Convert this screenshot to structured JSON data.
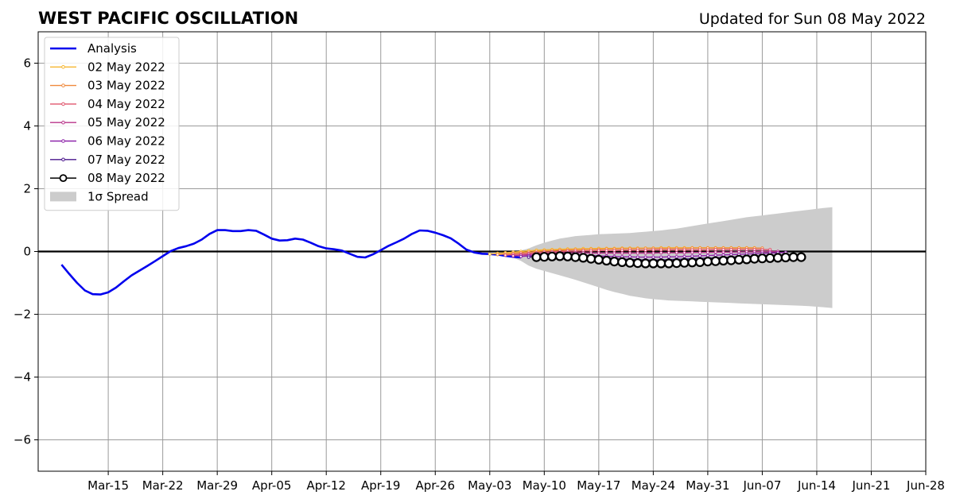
{
  "chart_data": {
    "type": "line",
    "title": "WEST PACIFIC OSCILLATION",
    "subtitle": "Updated for Sun 08 May 2022",
    "xlabel": "",
    "ylabel": "",
    "xlim": [
      "2022-03-06",
      "2022-06-28"
    ],
    "ylim": [
      -7,
      7
    ],
    "grid": true,
    "legend_position": "top-left",
    "x_ticks": [
      {
        "date": "2022-03-15",
        "label": "Mar-15"
      },
      {
        "date": "2022-03-22",
        "label": "Mar-22"
      },
      {
        "date": "2022-03-29",
        "label": "Mar-29"
      },
      {
        "date": "2022-04-05",
        "label": "Apr-05"
      },
      {
        "date": "2022-04-12",
        "label": "Apr-12"
      },
      {
        "date": "2022-04-19",
        "label": "Apr-19"
      },
      {
        "date": "2022-04-26",
        "label": "Apr-26"
      },
      {
        "date": "2022-05-03",
        "label": "May-03"
      },
      {
        "date": "2022-05-10",
        "label": "May-10"
      },
      {
        "date": "2022-05-17",
        "label": "May-17"
      },
      {
        "date": "2022-05-24",
        "label": "May-24"
      },
      {
        "date": "2022-05-31",
        "label": "May-31"
      },
      {
        "date": "2022-06-07",
        "label": "Jun-07"
      },
      {
        "date": "2022-06-14",
        "label": "Jun-14"
      },
      {
        "date": "2022-06-21",
        "label": "Jun-21"
      },
      {
        "date": "2022-06-28",
        "label": "Jun-28"
      }
    ],
    "y_ticks": [
      {
        "value": 6,
        "label": "6"
      },
      {
        "value": 4,
        "label": "4"
      },
      {
        "value": 2,
        "label": "2"
      },
      {
        "value": 0,
        "label": "0"
      },
      {
        "value": -2,
        "label": "−2"
      },
      {
        "value": -4,
        "label": "−4"
      },
      {
        "value": -6,
        "label": "−6"
      }
    ],
    "series": [
      {
        "name": "Analysis",
        "color": "#0000ee",
        "style": "analysis",
        "points": [
          [
            "2022-03-09",
            -0.42
          ],
          [
            "2022-03-10",
            -0.72
          ],
          [
            "2022-03-11",
            -1.0
          ],
          [
            "2022-03-12",
            -1.24
          ],
          [
            "2022-03-13",
            -1.36
          ],
          [
            "2022-03-14",
            -1.37
          ],
          [
            "2022-03-15",
            -1.3
          ],
          [
            "2022-03-16",
            -1.15
          ],
          [
            "2022-03-17",
            -0.95
          ],
          [
            "2022-03-18",
            -0.76
          ],
          [
            "2022-03-19",
            -0.61
          ],
          [
            "2022-03-20",
            -0.46
          ],
          [
            "2022-03-21",
            -0.31
          ],
          [
            "2022-03-22",
            -0.15
          ],
          [
            "2022-03-23",
            0.01
          ],
          [
            "2022-03-24",
            0.11
          ],
          [
            "2022-03-25",
            0.17
          ],
          [
            "2022-03-26",
            0.25
          ],
          [
            "2022-03-27",
            0.38
          ],
          [
            "2022-03-28",
            0.56
          ],
          [
            "2022-03-29",
            0.68
          ],
          [
            "2022-03-30",
            0.68
          ],
          [
            "2022-03-31",
            0.65
          ],
          [
            "2022-04-01",
            0.65
          ],
          [
            "2022-04-02",
            0.68
          ],
          [
            "2022-04-03",
            0.66
          ],
          [
            "2022-04-04",
            0.54
          ],
          [
            "2022-04-05",
            0.41
          ],
          [
            "2022-04-06",
            0.35
          ],
          [
            "2022-04-07",
            0.36
          ],
          [
            "2022-04-08",
            0.41
          ],
          [
            "2022-04-09",
            0.38
          ],
          [
            "2022-04-10",
            0.28
          ],
          [
            "2022-04-11",
            0.17
          ],
          [
            "2022-04-12",
            0.1
          ],
          [
            "2022-04-13",
            0.07
          ],
          [
            "2022-04-14",
            0.03
          ],
          [
            "2022-04-15",
            -0.07
          ],
          [
            "2022-04-16",
            -0.17
          ],
          [
            "2022-04-17",
            -0.19
          ],
          [
            "2022-04-18",
            -0.09
          ],
          [
            "2022-04-19",
            0.04
          ],
          [
            "2022-04-20",
            0.18
          ],
          [
            "2022-04-21",
            0.29
          ],
          [
            "2022-04-22",
            0.41
          ],
          [
            "2022-04-23",
            0.56
          ],
          [
            "2022-04-24",
            0.67
          ],
          [
            "2022-04-25",
            0.66
          ],
          [
            "2022-04-26",
            0.6
          ],
          [
            "2022-04-27",
            0.52
          ],
          [
            "2022-04-28",
            0.42
          ],
          [
            "2022-04-29",
            0.25
          ],
          [
            "2022-04-30",
            0.06
          ],
          [
            "2022-05-01",
            -0.03
          ],
          [
            "2022-05-02",
            -0.07
          ],
          [
            "2022-05-03",
            -0.08
          ],
          [
            "2022-05-04",
            -0.1
          ],
          [
            "2022-05-05",
            -0.14
          ],
          [
            "2022-05-06",
            -0.17
          ],
          [
            "2022-05-07",
            -0.19
          ]
        ]
      },
      {
        "name": "02 May 2022",
        "color": "#f7b731",
        "style": "forecast",
        "start": "2022-05-03",
        "values": [
          -0.08,
          -0.06,
          -0.04,
          -0.02,
          0.0,
          0.02,
          0.04,
          0.05,
          0.06,
          0.07,
          0.08,
          0.08,
          0.09,
          0.09,
          0.1,
          0.1,
          0.1,
          0.11,
          0.11,
          0.11,
          0.11,
          0.11,
          0.12,
          0.12,
          0.12,
          0.12,
          0.12,
          0.12,
          0.12,
          0.12,
          0.12,
          0.12,
          0.12,
          0.12,
          0.12
        ]
      },
      {
        "name": "03 May 2022",
        "color": "#f08a3c",
        "style": "forecast",
        "start": "2022-05-04",
        "values": [
          -0.1,
          -0.08,
          -0.06,
          -0.04,
          -0.02,
          0.0,
          0.02,
          0.03,
          0.04,
          0.05,
          0.06,
          0.06,
          0.07,
          0.07,
          0.08,
          0.08,
          0.09,
          0.09,
          0.09,
          0.1,
          0.1,
          0.1,
          0.1,
          0.1,
          0.1,
          0.11,
          0.11,
          0.11,
          0.11,
          0.11,
          0.11,
          0.11,
          0.11,
          0.11,
          0.11
        ]
      },
      {
        "name": "04 May 2022",
        "color": "#e0566d",
        "style": "forecast",
        "start": "2022-05-05",
        "values": [
          -0.12,
          -0.1,
          -0.08,
          -0.06,
          -0.04,
          -0.02,
          -0.01,
          0.0,
          0.01,
          0.01,
          0.02,
          0.02,
          0.03,
          0.03,
          0.03,
          0.04,
          0.04,
          0.04,
          0.04,
          0.05,
          0.05,
          0.05,
          0.05,
          0.05,
          0.05,
          0.05,
          0.05,
          0.06,
          0.06,
          0.06,
          0.06,
          0.06,
          0.06,
          0.06,
          0.06
        ]
      },
      {
        "name": "05 May 2022",
        "color": "#b8338a",
        "style": "forecast",
        "start": "2022-05-06",
        "values": [
          -0.14,
          -0.12,
          -0.1,
          -0.08,
          -0.06,
          -0.05,
          -0.04,
          -0.04,
          -0.04,
          -0.04,
          -0.05,
          -0.05,
          -0.05,
          -0.05,
          -0.05,
          -0.05,
          -0.05,
          -0.05,
          -0.05,
          -0.04,
          -0.04,
          -0.04,
          -0.04,
          -0.03,
          -0.03,
          -0.03,
          -0.02,
          -0.02,
          -0.02,
          -0.01,
          -0.01,
          -0.01,
          0.0,
          0.0,
          0.0
        ]
      },
      {
        "name": "06 May 2022",
        "color": "#8e24aa",
        "style": "forecast",
        "start": "2022-05-07",
        "values": [
          -0.16,
          -0.14,
          -0.12,
          -0.11,
          -0.1,
          -0.1,
          -0.1,
          -0.11,
          -0.12,
          -0.13,
          -0.14,
          -0.15,
          -0.16,
          -0.17,
          -0.17,
          -0.18,
          -0.18,
          -0.18,
          -0.18,
          -0.17,
          -0.17,
          -0.16,
          -0.15,
          -0.14,
          -0.13,
          -0.12,
          -0.11,
          -0.1,
          -0.09,
          -0.08,
          -0.07,
          -0.06,
          -0.05,
          -0.04,
          -0.03
        ]
      },
      {
        "name": "07 May 2022",
        "color": "#4a148c",
        "style": "forecast",
        "start": "2022-05-08",
        "values": [
          -0.18,
          -0.16,
          -0.14,
          -0.13,
          -0.13,
          -0.13,
          -0.14,
          -0.15,
          -0.16,
          -0.18,
          -0.2,
          -0.22,
          -0.24,
          -0.25,
          -0.26,
          -0.27,
          -0.27,
          -0.27,
          -0.26,
          -0.25,
          -0.24,
          -0.23,
          -0.22,
          -0.21,
          -0.2,
          -0.19,
          -0.18,
          -0.17,
          -0.16,
          -0.15,
          -0.14,
          -0.13,
          -0.12,
          -0.11,
          -0.1
        ]
      },
      {
        "name": "08 May 2022",
        "color": "#000000",
        "style": "latest",
        "start": "2022-05-09",
        "values": [
          -0.18,
          -0.17,
          -0.16,
          -0.15,
          -0.16,
          -0.18,
          -0.2,
          -0.23,
          -0.26,
          -0.29,
          -0.32,
          -0.34,
          -0.36,
          -0.37,
          -0.38,
          -0.38,
          -0.38,
          -0.38,
          -0.37,
          -0.36,
          -0.35,
          -0.34,
          -0.32,
          -0.31,
          -0.29,
          -0.28,
          -0.26,
          -0.25,
          -0.23,
          -0.22,
          -0.21,
          -0.2,
          -0.19,
          -0.18,
          -0.18
        ]
      }
    ],
    "spread": {
      "name": "1σ Spread",
      "color": "#cccccc",
      "start": "2022-05-03",
      "upper": [
        -0.05,
        -0.04,
        -0.02,
        0.0,
        0.03,
        0.1,
        0.2,
        0.28,
        0.35,
        0.41,
        0.45,
        0.49,
        0.51,
        0.53,
        0.55,
        0.56,
        0.57,
        0.58,
        0.59,
        0.61,
        0.63,
        0.65,
        0.67,
        0.7,
        0.73,
        0.77,
        0.81,
        0.85,
        0.89,
        0.93,
        0.97,
        1.01,
        1.05,
        1.09,
        1.12,
        1.15,
        1.18,
        1.21,
        1.24,
        1.27,
        1.3,
        1.33,
        1.36,
        1.39,
        1.41
      ],
      "lower": [
        -0.1,
        -0.12,
        -0.15,
        -0.2,
        -0.3,
        -0.45,
        -0.55,
        -0.62,
        -0.69,
        -0.76,
        -0.83,
        -0.9,
        -0.98,
        -1.06,
        -1.14,
        -1.22,
        -1.29,
        -1.35,
        -1.41,
        -1.45,
        -1.49,
        -1.52,
        -1.54,
        -1.56,
        -1.57,
        -1.58,
        -1.59,
        -1.6,
        -1.61,
        -1.62,
        -1.63,
        -1.64,
        -1.65,
        -1.66,
        -1.67,
        -1.68,
        -1.69,
        -1.7,
        -1.71,
        -1.72,
        -1.73,
        -1.74,
        -1.76,
        -1.78,
        -1.8
      ]
    }
  }
}
